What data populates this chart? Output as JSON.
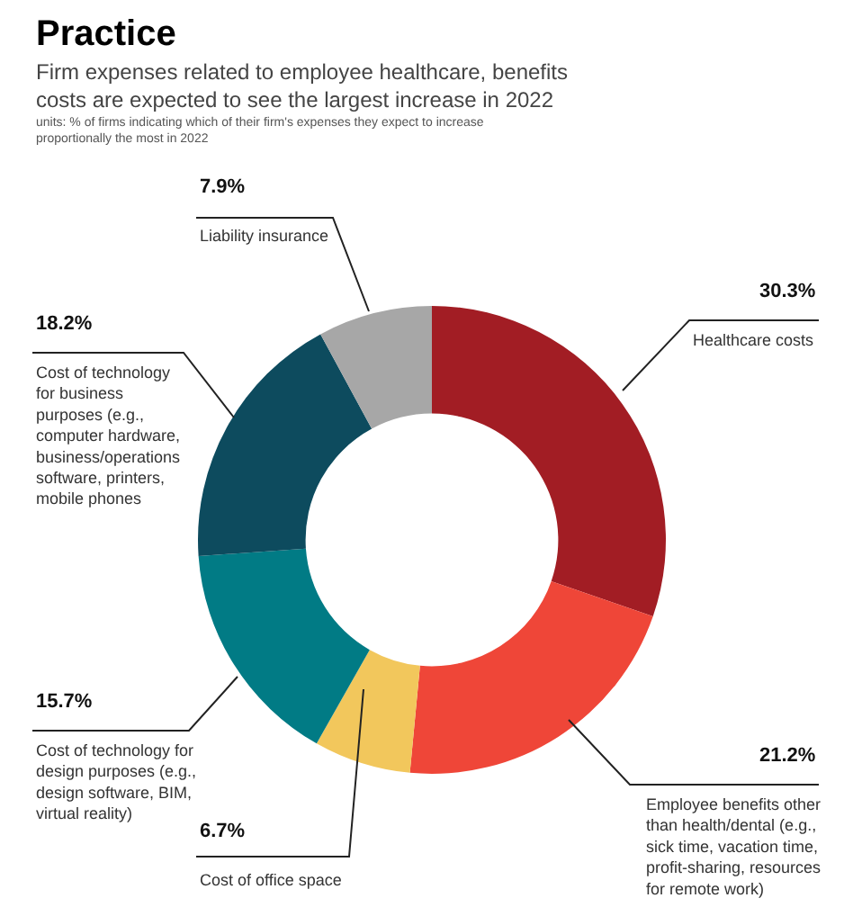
{
  "chart_data": {
    "type": "donut",
    "title": "Practice",
    "subtitle": "Firm expenses related to employee healthcare, benefits costs are expected to see the largest increase in 2022",
    "annotations": [
      "units: % of firms indicating which of their firm's expenses they expect to increase proportionally the most in 2022"
    ],
    "categories": [
      "Healthcare costs",
      "Employee benefits other than health/dental (e.g., sick time, vacation time, profit-sharing, resources for remote work)",
      "Cost of office space",
      "Cost of technology for design purposes (e.g., design software, BIM, virtual reality)",
      "Cost of technology for business purposes (e.g., computer hardware, business/operations software, printers, mobile phones",
      "Liability insurance"
    ],
    "values": [
      30.3,
      21.2,
      6.7,
      15.7,
      18.2,
      7.9
    ],
    "value_labels": [
      "30.3%",
      "21.2%",
      "6.7%",
      "15.7%",
      "18.2%",
      "7.9%"
    ],
    "colors": [
      "#a21d24",
      "#ef4638",
      "#f2c75c",
      "#017b85",
      "#0d4b5e",
      "#a7a7a7"
    ],
    "legend": false
  }
}
